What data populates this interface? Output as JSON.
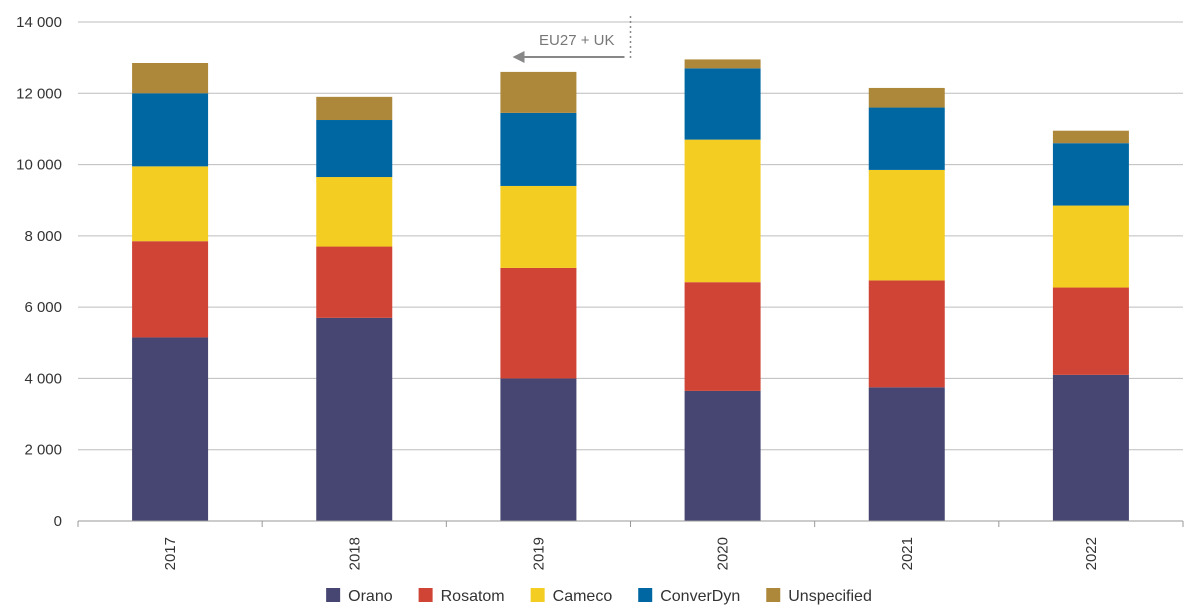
{
  "chart_data": {
    "type": "bar",
    "stacked": true,
    "categories": [
      "2017",
      "2018",
      "2019",
      "2020",
      "2021",
      "2022"
    ],
    "series": [
      {
        "name": "Orano",
        "color": "#474672",
        "values": [
          5150,
          5700,
          4000,
          3650,
          3750,
          4100
        ]
      },
      {
        "name": "Rosatom",
        "color": "#cf4435",
        "values": [
          2700,
          2000,
          3100,
          3050,
          3000,
          2450
        ]
      },
      {
        "name": "Cameco",
        "color": "#f4cd22",
        "values": [
          2100,
          1950,
          2300,
          4000,
          3100,
          2300
        ]
      },
      {
        "name": "ConverDyn",
        "color": "#0067a3",
        "values": [
          2050,
          1600,
          2050,
          2000,
          1750,
          1750
        ]
      },
      {
        "name": "Unspecified",
        "color": "#ad883b",
        "values": [
          850,
          650,
          1150,
          250,
          550,
          350
        ]
      }
    ],
    "ylim": [
      0,
      14000
    ],
    "yticks": [
      0,
      2000,
      4000,
      6000,
      8000,
      10000,
      12000,
      14000
    ],
    "ytick_labels": [
      "0",
      "2 000",
      "4 000",
      "6 000",
      "8 000",
      "10 000",
      "12 000",
      "14 000"
    ],
    "grid": "horizontal",
    "legend_position": "bottom",
    "annotation": {
      "text": "EU27 + UK",
      "boundary_after_category": "2019",
      "direction": "left"
    }
  }
}
